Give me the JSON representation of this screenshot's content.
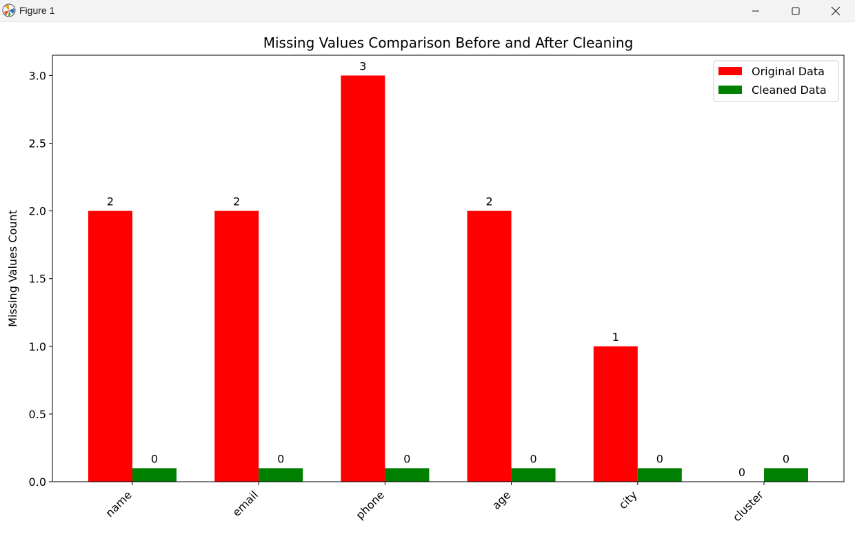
{
  "window": {
    "title": "Figure 1",
    "app_icon": "matplotlib-icon",
    "controls": [
      "minimize-icon",
      "maximize-icon",
      "close-icon"
    ]
  },
  "chart_data": {
    "type": "bar",
    "title": "Missing Values Comparison Before and After Cleaning",
    "xlabel": "",
    "ylabel": "Missing Values Count",
    "categories": [
      "name",
      "email",
      "phone",
      "age",
      "city",
      "cluster"
    ],
    "series": [
      {
        "name": "Original Data",
        "color": "#ff0000",
        "values": [
          2,
          2,
          3,
          2,
          1,
          0
        ]
      },
      {
        "name": "Cleaned Data",
        "color": "#008000",
        "values": [
          0.1,
          0.1,
          0.1,
          0.1,
          0.1,
          0.1
        ],
        "labels": [
          "0",
          "0",
          "0",
          "0",
          "0",
          "0"
        ]
      }
    ],
    "ylim": [
      0,
      3.15
    ],
    "yticks": [
      0.0,
      0.5,
      1.0,
      1.5,
      2.0,
      2.5,
      3.0
    ],
    "ytick_labels": [
      "0.0",
      "0.5",
      "1.0",
      "1.5",
      "2.0",
      "2.5",
      "3.0"
    ],
    "xtick_rotation": 45,
    "grid": false,
    "legend": "top-right"
  }
}
